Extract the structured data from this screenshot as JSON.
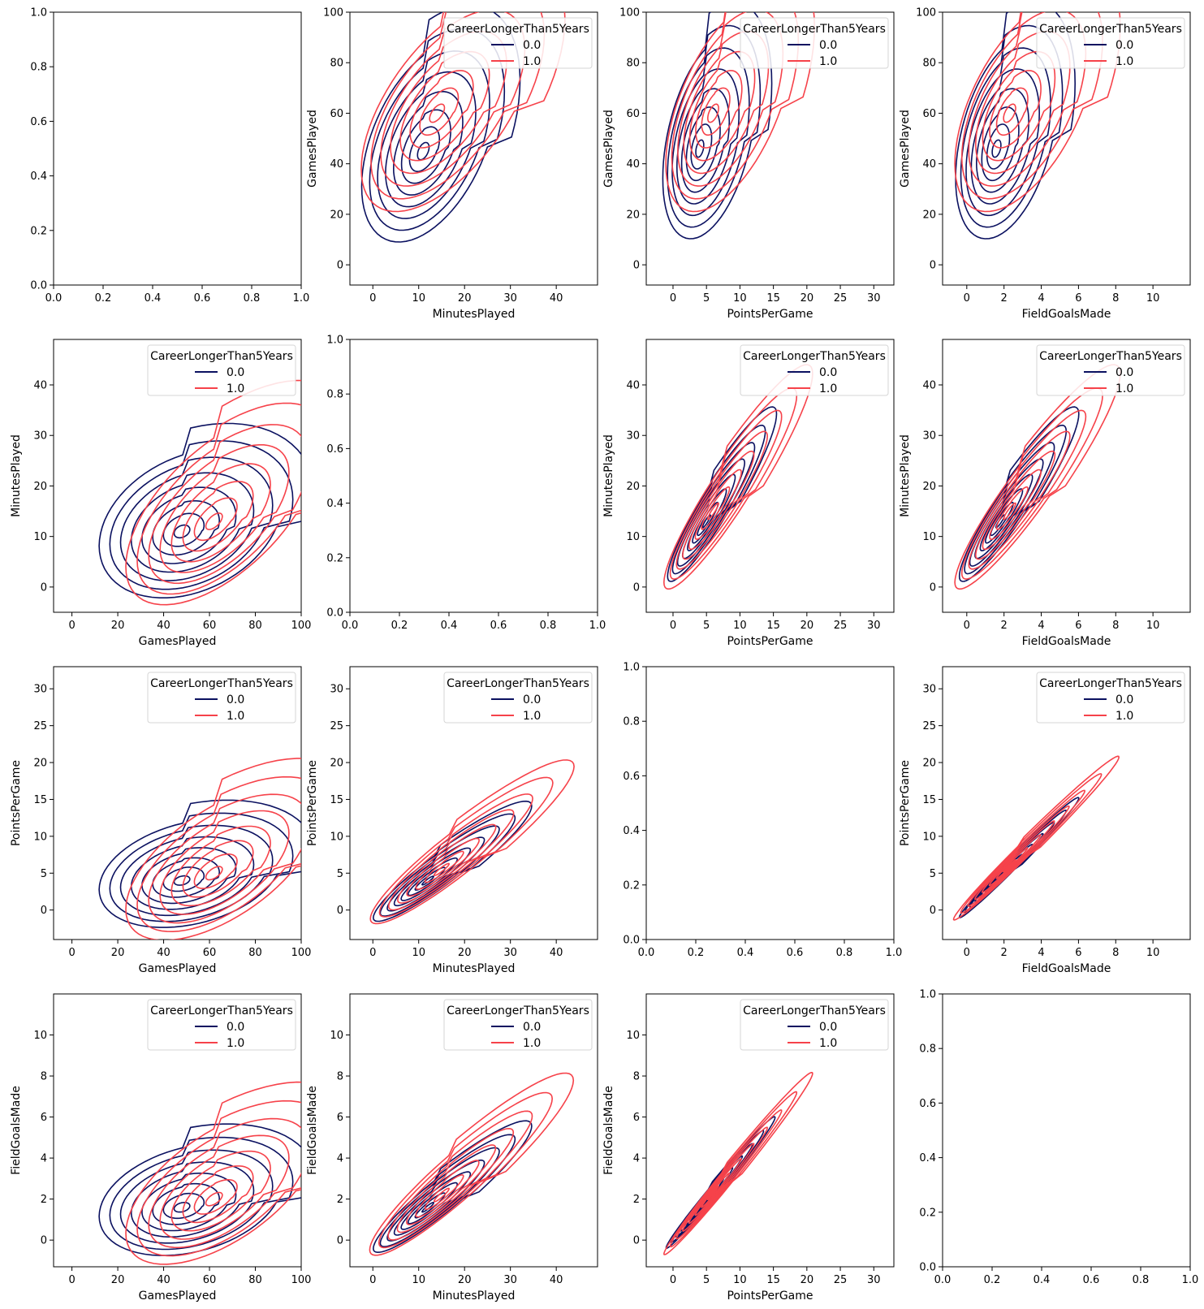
{
  "figure": {
    "title": "",
    "layout": "4x4 pair grid of KDE contour plots"
  },
  "colors": {
    "class_0": "#0b1160",
    "class_1": "#f6424a",
    "axes": "#000000",
    "background": "#ffffff",
    "legend_border": "#d6d6d6"
  },
  "legend": {
    "title": "CareerLongerThan5Years",
    "entries": [
      "0.0",
      "1.0"
    ]
  },
  "variables": {
    "GamesPlayed": {
      "label": "GamesPlayed",
      "ticks": [
        0,
        20,
        40,
        60,
        80,
        100
      ]
    },
    "MinutesPlayed": {
      "label": "MinutesPlayed",
      "ticks": [
        0,
        10,
        20,
        30,
        40
      ]
    },
    "PointsPerGame": {
      "label": "PointsPerGame",
      "ticks": [
        0,
        5,
        10,
        15,
        20,
        25,
        30
      ]
    },
    "FieldGoalsMade": {
      "label": "FieldGoalsMade",
      "ticks": [
        0,
        2,
        4,
        6,
        8,
        10
      ]
    }
  },
  "chart_data": {
    "type": "kde-contour pair grid",
    "hue": "CareerLongerThan5Years",
    "hue_levels": [
      "0.0",
      "1.0"
    ],
    "rows": [
      "GamesPlayed",
      "MinutesPlayed",
      "PointsPerGame",
      "FieldGoalsMade"
    ],
    "cols": [
      "GamesPlayed",
      "MinutesPlayed",
      "PointsPerGame",
      "FieldGoalsMade"
    ],
    "diagonal": "empty axes",
    "empty_axes_ticks": [
      "0.0",
      "0.2",
      "0.4",
      "0.6",
      "0.8",
      "1.0"
    ],
    "axis_ranges": {
      "GamesPlayed": [
        -8,
        100
      ],
      "MinutesPlayed": [
        -5,
        49
      ],
      "PointsPerGame": [
        -4,
        33
      ],
      "FieldGoalsMade": [
        -1.3,
        12
      ]
    },
    "legend_loc": "upper right",
    "panels": [
      {
        "x": "GamesPlayed",
        "y": "MinutesPlayed",
        "series": [
          {
            "name": "0.0",
            "center": [
              48,
              11
            ],
            "spread": [
              19,
              7
            ],
            "corr": 0.3,
            "peak_offset": [
              27,
              11
            ]
          },
          {
            "name": "1.0",
            "center": [
              62,
              13
            ],
            "spread": [
              20,
              9
            ],
            "corr": 0.6,
            "peak_offset": [
              25,
              17
            ]
          }
        ]
      },
      {
        "x": "GamesPlayed",
        "y": "PointsPerGame",
        "series": [
          {
            "name": "0.0",
            "center": [
              48,
              4
            ],
            "spread": [
              19,
              3.5
            ],
            "corr": 0.3,
            "peak_offset": [
              27,
              7
            ]
          },
          {
            "name": "1.0",
            "center": [
              62,
              5
            ],
            "spread": [
              20,
              5
            ],
            "corr": 0.6,
            "peak_offset": [
              25,
              10
            ]
          }
        ]
      },
      {
        "x": "GamesPlayed",
        "y": "FieldGoalsMade",
        "series": [
          {
            "name": "0.0",
            "center": [
              48,
              1.6
            ],
            "spread": [
              19,
              1.3
            ],
            "corr": 0.3,
            "peak_offset": [
              27,
              2.7
            ]
          },
          {
            "name": "1.0",
            "center": [
              62,
              2
            ],
            "spread": [
              20,
              1.8
            ],
            "corr": 0.6,
            "peak_offset": [
              25,
              4.3
            ]
          }
        ]
      },
      {
        "x": "MinutesPlayed",
        "y": "GamesPlayed",
        "series": [
          {
            "name": "0.0",
            "center": [
              11,
              45
            ],
            "spread": [
              7,
              19
            ],
            "corr": 0.45,
            "peak_offset": [
              9,
              28
            ]
          },
          {
            "name": "1.0",
            "center": [
              14,
              60
            ],
            "spread": [
              9,
              20
            ],
            "corr": 0.6,
            "peak_offset": [
              17,
              22
            ]
          }
        ]
      },
      {
        "x": "MinutesPlayed",
        "y": "PointsPerGame",
        "series": [
          {
            "name": "0.0",
            "center": [
              12,
              4
            ],
            "spread": [
              7,
              3.3
            ],
            "corr": 0.93,
            "peak_offset": [
              20,
              10
            ]
          },
          {
            "name": "1.0",
            "center": [
              15,
              5.5
            ],
            "spread": [
              9,
              4.5
            ],
            "corr": 0.93,
            "peak_offset": [
              24,
              15
            ]
          }
        ]
      },
      {
        "x": "MinutesPlayed",
        "y": "FieldGoalsMade",
        "series": [
          {
            "name": "0.0",
            "center": [
              12,
              1.6
            ],
            "spread": [
              7,
              1.3
            ],
            "corr": 0.93,
            "peak_offset": [
              20,
              3.8
            ]
          },
          {
            "name": "1.0",
            "center": [
              15,
              2.2
            ],
            "spread": [
              9,
              1.8
            ],
            "corr": 0.93,
            "peak_offset": [
              23,
              6
            ]
          }
        ]
      },
      {
        "x": "PointsPerGame",
        "y": "GamesPlayed",
        "series": [
          {
            "name": "0.0",
            "center": [
              4,
              46
            ],
            "spread": [
              3.3,
              19
            ],
            "corr": 0.4,
            "peak_offset": [
              10,
              30
            ]
          },
          {
            "name": "1.0",
            "center": [
              6,
              60
            ],
            "spread": [
              4.5,
              20
            ],
            "corr": 0.55,
            "peak_offset": [
              17,
              22
            ]
          }
        ]
      },
      {
        "x": "PointsPerGame",
        "y": "MinutesPlayed",
        "series": [
          {
            "name": "0.0",
            "center": [
              5,
              13
            ],
            "spread": [
              3.3,
              7
            ],
            "corr": 0.93,
            "peak_offset": [
              8,
              20
            ]
          },
          {
            "name": "1.0",
            "center": [
              6,
              15
            ],
            "spread": [
              4.5,
              9
            ],
            "corr": 0.93,
            "peak_offset": [
              15,
              25
            ]
          }
        ]
      },
      {
        "x": "PointsPerGame",
        "y": "FieldGoalsMade",
        "series": [
          {
            "name": "0.0",
            "center": [
              4.5,
              1.8
            ],
            "spread": [
              3.3,
              1.3
            ],
            "corr": 0.99,
            "peak_offset": [
              10,
              3.8
            ]
          },
          {
            "name": "1.0",
            "center": [
              6,
              2.3
            ],
            "spread": [
              4.5,
              1.8
            ],
            "corr": 0.99,
            "peak_offset": [
              15,
              5.5
            ]
          }
        ]
      },
      {
        "x": "FieldGoalsMade",
        "y": "GamesPlayed",
        "series": [
          {
            "name": "0.0",
            "center": [
              1.6,
              46
            ],
            "spread": [
              1.3,
              19
            ],
            "corr": 0.4,
            "peak_offset": [
              3.8,
              30
            ]
          },
          {
            "name": "1.0",
            "center": [
              2.3,
              60
            ],
            "spread": [
              1.8,
              20
            ],
            "corr": 0.55,
            "peak_offset": [
              6,
              22
            ]
          }
        ]
      },
      {
        "x": "FieldGoalsMade",
        "y": "MinutesPlayed",
        "series": [
          {
            "name": "0.0",
            "center": [
              1.8,
              13
            ],
            "spread": [
              1.3,
              7
            ],
            "corr": 0.93,
            "peak_offset": [
              3.8,
              20
            ]
          },
          {
            "name": "1.0",
            "center": [
              2.3,
              15
            ],
            "spread": [
              1.8,
              9
            ],
            "corr": 0.93,
            "peak_offset": [
              6,
              25
            ]
          }
        ]
      },
      {
        "x": "FieldGoalsMade",
        "y": "PointsPerGame",
        "series": [
          {
            "name": "0.0",
            "center": [
              1.8,
              4.5
            ],
            "spread": [
              1.3,
              3.3
            ],
            "corr": 0.99,
            "peak_offset": [
              3.8,
              10
            ]
          },
          {
            "name": "1.0",
            "center": [
              2.3,
              6
            ],
            "spread": [
              1.8,
              4.5
            ],
            "corr": 0.99,
            "peak_offset": [
              5.5,
              15
            ]
          }
        ]
      }
    ]
  }
}
